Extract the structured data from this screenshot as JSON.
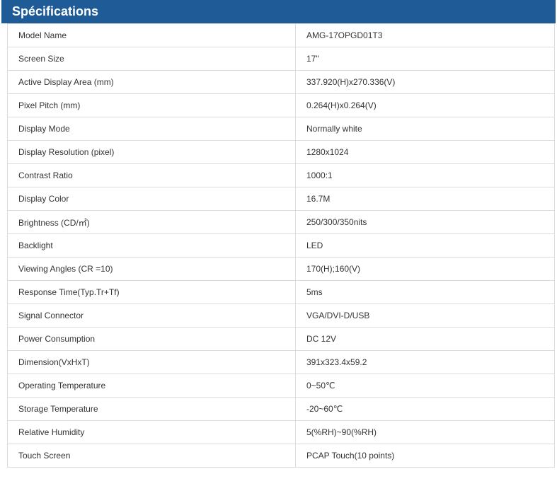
{
  "header": {
    "title": "Spécifications"
  },
  "table": {
    "rows": [
      [
        "Model Name",
        "AMG-17OPGD01T3"
      ],
      [
        "Screen Size",
        "17''"
      ],
      [
        "Active Display Area (mm)",
        "337.920(H)x270.336(V)"
      ],
      [
        "Pixel Pitch (mm)",
        "0.264(H)x0.264(V)"
      ],
      [
        "Display Mode",
        "Normally white"
      ],
      [
        "Display Resolution (pixel)",
        "1280x1024"
      ],
      [
        "Contrast Ratio",
        "1000:1"
      ],
      [
        "Display Color",
        "16.7M"
      ],
      [
        "Brightness (CD/㎡)",
        "250/300/350nits"
      ],
      [
        "Backlight",
        "LED"
      ],
      [
        "Viewing Angles (CR =10)",
        "170(H);160(V)"
      ],
      [
        "Response Time(Typ.Tr+Tf)",
        "5ms"
      ],
      [
        "Signal Connector",
        "VGA/DVI-D/USB"
      ],
      [
        "Power Consumption",
        "DC 12V"
      ],
      [
        "Dimension(VxHxT)",
        "391x323.4x59.2"
      ],
      [
        "Operating Temperature",
        "0~50℃"
      ],
      [
        "Storage Temperature",
        "-20~60℃"
      ],
      [
        "Relative Humidity",
        "5(%RH)~90(%RH)"
      ],
      [
        "Touch Screen",
        "PCAP Touch(10 points)"
      ]
    ]
  }
}
